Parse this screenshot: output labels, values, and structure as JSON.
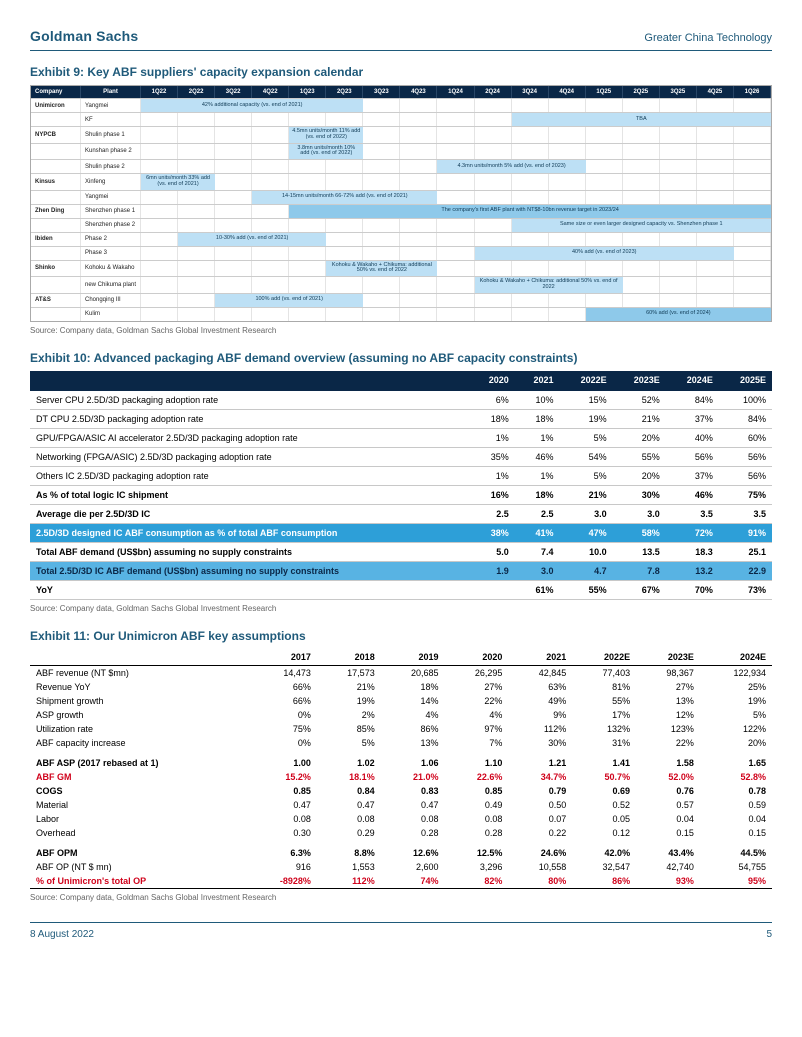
{
  "header": {
    "brand": "Goldman Sachs",
    "region": "Greater China Technology"
  },
  "footer": {
    "date": "8 August 2022",
    "page": "5"
  },
  "sourceLine": "Source: Company data, Goldman Sachs Global Investment Research",
  "exhibit9": {
    "title": "Exhibit 9: Key ABF suppliers' capacity expansion calendar",
    "qHeaders": [
      "Company",
      "Plant",
      "1Q22",
      "2Q22",
      "3Q22",
      "4Q22",
      "1Q23",
      "2Q23",
      "3Q23",
      "4Q23",
      "1Q24",
      "2Q24",
      "3Q24",
      "4Q24",
      "1Q25",
      "2Q25",
      "3Q25",
      "4Q25",
      "1Q26"
    ],
    "colors": {
      "light": "#bde0f5",
      "mid": "#8ec9ea",
      "header_bg": "#0a2747"
    },
    "rows": [
      {
        "company": "Unimicron",
        "plant": "Yangmei",
        "bars": [
          {
            "start": 1,
            "span": 6,
            "label": "42% additional capacity (vs. end of 2021)",
            "color": "#bde0f5"
          }
        ]
      },
      {
        "company": "",
        "plant": "KF",
        "bars": [
          {
            "start": 11,
            "span": 7,
            "label": "TBA",
            "color": "#bde0f5"
          }
        ]
      },
      {
        "company": "NYPCB",
        "plant": "Shulin phase 1",
        "bars": [
          {
            "start": 5,
            "span": 2,
            "label": "4.5mn units/month\n11% add (vs. end of 2022)",
            "color": "#bde0f5"
          }
        ]
      },
      {
        "company": "",
        "plant": "Kunshan phase 2",
        "bars": [
          {
            "start": 5,
            "span": 2,
            "label": "3.8mn units/month\n10% add (vs. end of 2022)",
            "color": "#bde0f5"
          }
        ]
      },
      {
        "company": "",
        "plant": "Shulin phase 2",
        "bars": [
          {
            "start": 9,
            "span": 4,
            "label": "4.3mn units/month\n5% add (vs. end of 2023)",
            "color": "#bde0f5"
          }
        ]
      },
      {
        "company": "Kinsus",
        "plant": "Xinfeng",
        "bars": [
          {
            "start": 1,
            "span": 2,
            "label": "6mn units/month\n33% add (vs. end of 2021)",
            "color": "#bde0f5"
          }
        ]
      },
      {
        "company": "",
        "plant": "Yangmei",
        "bars": [
          {
            "start": 4,
            "span": 5,
            "label": "14-15mn units/month\n66-72% add (vs. end of 2021)",
            "color": "#bde0f5"
          }
        ]
      },
      {
        "company": "Zhen Ding",
        "plant": "Shenzhen phase 1",
        "bars": [
          {
            "start": 5,
            "span": 13,
            "label": "The company's first ABF plant with NT$8-10bn revenue target in 2023/24",
            "color": "#8ec9ea"
          }
        ]
      },
      {
        "company": "",
        "plant": "Shenzhen phase 2",
        "bars": [
          {
            "start": 11,
            "span": 7,
            "label": "Same size or even larger designed capacity vs. Shenzhen phase 1",
            "color": "#bde0f5"
          }
        ]
      },
      {
        "company": "Ibiden",
        "plant": "Phase 2",
        "bars": [
          {
            "start": 2,
            "span": 4,
            "label": "10-30% add (vs. end of 2021)",
            "color": "#bde0f5"
          }
        ]
      },
      {
        "company": "",
        "plant": "Phase 3",
        "bars": [
          {
            "start": 10,
            "span": 7,
            "label": "40% add (vs. end of 2023)",
            "color": "#bde0f5"
          }
        ]
      },
      {
        "company": "Shinko",
        "plant": "Kohoku & Wakaho",
        "bars": [
          {
            "start": 6,
            "span": 3,
            "label": "Kohoku & Wakaho + Chikuma:\nadditional 50% vs. end of 2022",
            "color": "#bde0f5"
          }
        ]
      },
      {
        "company": "",
        "plant": "new Chikuma plant",
        "bars": [
          {
            "start": 10,
            "span": 4,
            "label": "Kohoku & Wakaho + Chikuma:\nadditional 50% vs. end of 2022",
            "color": "#bde0f5"
          }
        ]
      },
      {
        "company": "AT&S",
        "plant": "Chongqing III",
        "bars": [
          {
            "start": 3,
            "span": 4,
            "label": "100% add (vs. end of 2021)",
            "color": "#bde0f5"
          }
        ]
      },
      {
        "company": "",
        "plant": "Kulim",
        "bars": [
          {
            "start": 13,
            "span": 5,
            "label": "60% add (vs. end of 2024)",
            "color": "#8ec9ea"
          }
        ]
      }
    ]
  },
  "exhibit10": {
    "title": "Exhibit 10: Advanced packaging ABF demand overview (assuming no ABF capacity constraints)",
    "years": [
      "2020",
      "2021",
      "2022E",
      "2023E",
      "2024E",
      "2025E"
    ],
    "rows": [
      {
        "label": "Server CPU 2.5D/3D packaging adoption rate",
        "vals": [
          "6%",
          "10%",
          "15%",
          "52%",
          "84%",
          "100%"
        ]
      },
      {
        "label": "DT CPU 2.5D/3D packaging adoption rate",
        "vals": [
          "18%",
          "18%",
          "19%",
          "21%",
          "37%",
          "84%"
        ]
      },
      {
        "label": "GPU/FPGA/ASIC AI accelerator 2.5D/3D packaging adoption rate",
        "vals": [
          "1%",
          "1%",
          "5%",
          "20%",
          "40%",
          "60%"
        ]
      },
      {
        "label": "Networking (FPGA/ASIC) 2.5D/3D packaging adoption rate",
        "vals": [
          "35%",
          "46%",
          "54%",
          "55%",
          "56%",
          "56%"
        ]
      },
      {
        "label": "Others IC 2.5D/3D packaging adoption rate",
        "vals": [
          "1%",
          "1%",
          "5%",
          "20%",
          "37%",
          "56%"
        ]
      },
      {
        "label": "As % of total logic IC shipment",
        "vals": [
          "16%",
          "18%",
          "21%",
          "30%",
          "46%",
          "75%"
        ],
        "bold": true
      },
      {
        "label": "Average die per 2.5D/3D IC",
        "vals": [
          "2.5",
          "2.5",
          "3.0",
          "3.0",
          "3.5",
          "3.5"
        ],
        "bold": true
      },
      {
        "label": "2.5D/3D designed IC ABF consumption as % of total ABF consumption",
        "vals": [
          "38%",
          "41%",
          "47%",
          "58%",
          "72%",
          "91%"
        ],
        "hl": "hl"
      },
      {
        "label": "Total ABF demand (US$bn) assuming no supply constraints",
        "vals": [
          "5.0",
          "7.4",
          "10.0",
          "13.5",
          "18.3",
          "25.1"
        ],
        "bold": true
      },
      {
        "label": "Total 2.5D/3D IC ABF demand (US$bn) assuming no supply constraints",
        "vals": [
          "1.9",
          "3.0",
          "4.7",
          "7.8",
          "13.2",
          "22.9"
        ],
        "hl": "hl2"
      },
      {
        "label": "YoY",
        "vals": [
          "",
          "61%",
          "55%",
          "67%",
          "70%",
          "73%"
        ],
        "bold": true
      }
    ]
  },
  "exhibit11": {
    "title": "Exhibit 11: Our Unimicron ABF key assumptions",
    "years": [
      "2017",
      "2018",
      "2019",
      "2020",
      "2021",
      "2022E",
      "2023E",
      "2024E"
    ],
    "rows": [
      {
        "label": "ABF revenue (NT $mn)",
        "vals": [
          "14,473",
          "17,573",
          "20,685",
          "26,295",
          "42,845",
          "77,403",
          "98,367",
          "122,934"
        ]
      },
      {
        "label": "Revenue YoY",
        "vals": [
          "66%",
          "21%",
          "18%",
          "27%",
          "63%",
          "81%",
          "27%",
          "25%"
        ]
      },
      {
        "label": "Shipment growth",
        "vals": [
          "66%",
          "19%",
          "14%",
          "22%",
          "49%",
          "55%",
          "13%",
          "19%"
        ]
      },
      {
        "label": "ASP growth",
        "vals": [
          "0%",
          "2%",
          "4%",
          "4%",
          "9%",
          "17%",
          "12%",
          "5%"
        ]
      },
      {
        "label": "Utilization rate",
        "vals": [
          "75%",
          "85%",
          "86%",
          "97%",
          "112%",
          "132%",
          "123%",
          "122%"
        ]
      },
      {
        "label": "ABF capacity increase",
        "vals": [
          "0%",
          "5%",
          "13%",
          "7%",
          "30%",
          "31%",
          "22%",
          "20%"
        ]
      },
      {
        "spacer": true
      },
      {
        "label": "ABF ASP (2017 rebased at 1)",
        "vals": [
          "1.00",
          "1.02",
          "1.06",
          "1.10",
          "1.21",
          "1.41",
          "1.58",
          "1.65"
        ],
        "bold": true
      },
      {
        "label": "ABF GM",
        "vals": [
          "15.2%",
          "18.1%",
          "21.0%",
          "22.6%",
          "34.7%",
          "50.7%",
          "52.0%",
          "52.8%"
        ],
        "red": true,
        "bold": true
      },
      {
        "label": "COGS",
        "vals": [
          "0.85",
          "0.84",
          "0.83",
          "0.85",
          "0.79",
          "0.69",
          "0.76",
          "0.78"
        ],
        "bold": true
      },
      {
        "label": "Material",
        "vals": [
          "0.47",
          "0.47",
          "0.47",
          "0.49",
          "0.50",
          "0.52",
          "0.57",
          "0.59"
        ]
      },
      {
        "label": "Labor",
        "vals": [
          "0.08",
          "0.08",
          "0.08",
          "0.08",
          "0.07",
          "0.05",
          "0.04",
          "0.04"
        ]
      },
      {
        "label": "Overhead",
        "vals": [
          "0.30",
          "0.29",
          "0.28",
          "0.28",
          "0.22",
          "0.12",
          "0.15",
          "0.15"
        ]
      },
      {
        "spacer": true
      },
      {
        "label": "ABF OPM",
        "vals": [
          "6.3%",
          "8.8%",
          "12.6%",
          "12.5%",
          "24.6%",
          "42.0%",
          "43.4%",
          "44.5%"
        ],
        "bold": true
      },
      {
        "label": "ABF OP (NT $ mn)",
        "vals": [
          "916",
          "1,553",
          "2,600",
          "3,296",
          "10,558",
          "32,547",
          "42,740",
          "54,755"
        ]
      },
      {
        "label": "% of Unimicron's total OP",
        "vals": [
          "-8928%",
          "112%",
          "74%",
          "82%",
          "80%",
          "86%",
          "93%",
          "95%"
        ],
        "red": true,
        "bold": true,
        "lineBottom": true
      }
    ]
  }
}
